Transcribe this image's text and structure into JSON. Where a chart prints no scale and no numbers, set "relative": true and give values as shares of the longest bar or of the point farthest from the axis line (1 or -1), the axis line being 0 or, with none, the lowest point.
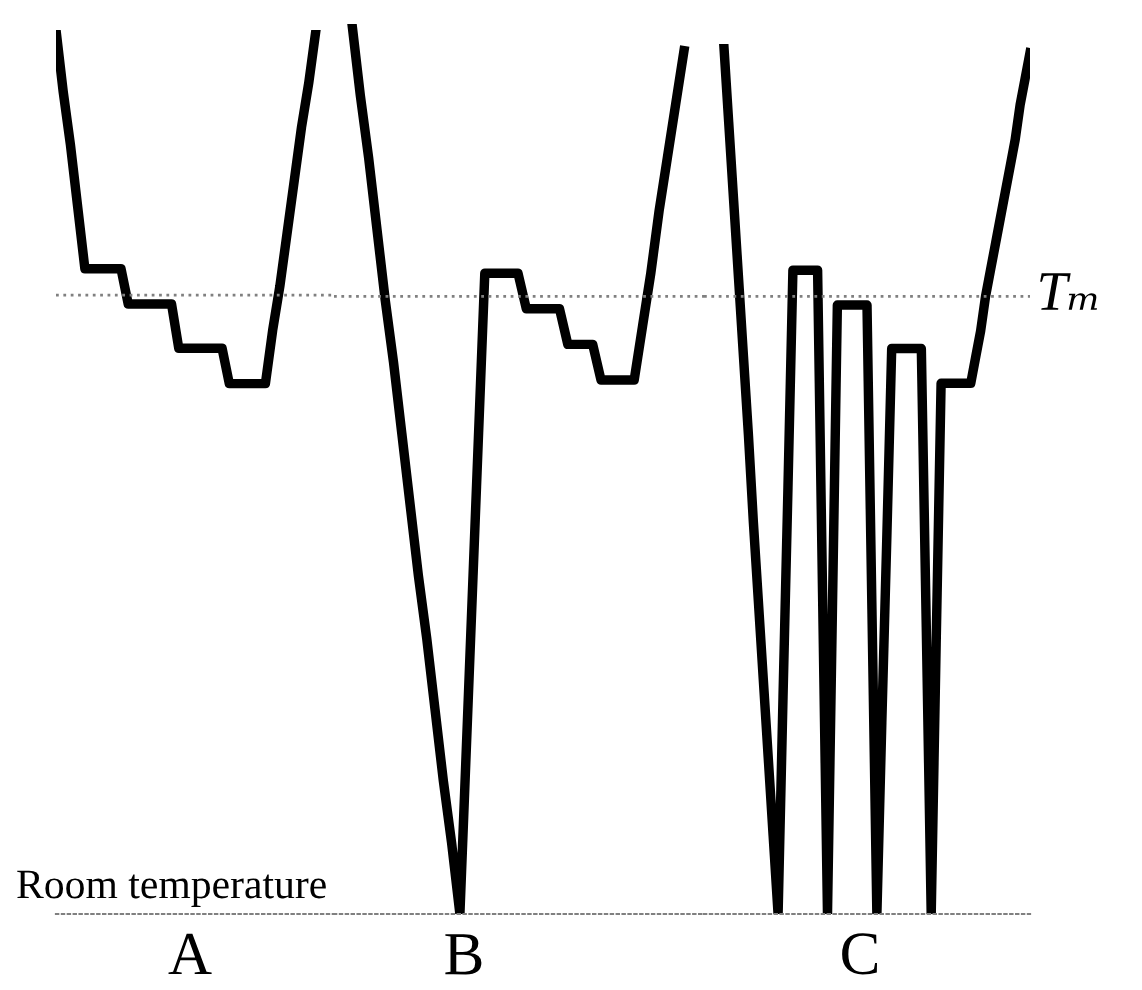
{
  "chart_data": [
    {
      "type": "line",
      "relative": true,
      "xlabel": "A",
      "line_style": "solid",
      "marker": "none",
      "categories": [
        null,
        null,
        null,
        null,
        null,
        null,
        null,
        null,
        null,
        null,
        null,
        null,
        null,
        null,
        null,
        null,
        null,
        null,
        null,
        null,
        null,
        null,
        null,
        null,
        null,
        null,
        null,
        null,
        null,
        null,
        null,
        null,
        null,
        null,
        null,
        null,
        null
      ],
      "series": [
        {
          "color": "#000000",
          "values": [
            1.0,
            0.93,
            0.87,
            0.8,
            0.73,
            0.73,
            0.73,
            0.73,
            0.73,
            0.73,
            0.69,
            0.69,
            0.69,
            0.69,
            0.69,
            0.69,
            0.69,
            0.64,
            0.64,
            0.64,
            0.64,
            0.64,
            0.64,
            0.64,
            0.6,
            0.6,
            0.6,
            0.6,
            0.6,
            0.6,
            0.66,
            0.71,
            0.77,
            0.83,
            0.89,
            0.94,
            1.0
          ]
        }
      ],
      "ref_lines": [
        {
          "axis": "y",
          "value": 0.7,
          "color": "#808080",
          "line_style": "dotted"
        }
      ],
      "annotations": [
        "Room temperature"
      ]
    },
    {
      "type": "line",
      "relative": true,
      "xlabel": "B",
      "line_style": "solid",
      "marker": "none",
      "categories": [
        null,
        null,
        null,
        null,
        null,
        null,
        null,
        null,
        null,
        null,
        null,
        null,
        null,
        null,
        null,
        null,
        null,
        null,
        null,
        null,
        null,
        null,
        null,
        null,
        null,
        null,
        null,
        null,
        null,
        null,
        null,
        null,
        null,
        null,
        null,
        null,
        null,
        null,
        null,
        null,
        null
      ],
      "series": [
        {
          "color": "#000000",
          "values": [
            1.0,
            0.92,
            0.85,
            0.77,
            0.69,
            0.62,
            0.54,
            0.46,
            0.38,
            0.31,
            0.23,
            0.15,
            0.08,
            0.0,
            0.24,
            0.48,
            0.72,
            0.72,
            0.72,
            0.72,
            0.72,
            0.68,
            0.68,
            0.68,
            0.68,
            0.68,
            0.64,
            0.64,
            0.64,
            0.64,
            0.6,
            0.6,
            0.6,
            0.6,
            0.6,
            0.66,
            0.72,
            0.79,
            0.85,
            0.91,
            0.97
          ]
        }
      ],
      "ref_lines": [
        {
          "axis": "y",
          "value": 0.694,
          "color": "#808080",
          "line_style": "dotted"
        }
      ]
    },
    {
      "type": "line",
      "relative": true,
      "xlabel": "C",
      "line_style": "solid",
      "marker": "none",
      "categories": [
        null,
        null,
        null,
        null,
        null,
        null,
        null,
        null,
        null,
        null,
        null,
        null,
        null,
        null,
        null,
        null,
        null,
        null,
        null,
        null,
        null,
        null,
        null,
        null,
        null,
        null,
        null,
        null,
        null,
        null,
        null,
        null,
        null,
        null,
        null,
        null,
        null,
        null,
        null,
        null,
        null,
        null,
        null,
        null,
        null,
        null,
        null,
        null,
        null,
        null,
        null,
        null,
        null,
        null,
        null,
        null,
        null,
        null,
        null,
        null,
        null,
        null,
        null
      ],
      "series": [
        {
          "color": "#000000",
          "values": [
            1.0,
            0.91,
            0.82,
            0.73,
            0.64,
            0.55,
            0.45,
            0.36,
            0.27,
            0.18,
            0.09,
            0.0,
            0.25,
            0.49,
            0.74,
            0.74,
            0.74,
            0.74,
            0.74,
            0.74,
            0.37,
            0.0,
            0.35,
            0.7,
            0.7,
            0.7,
            0.7,
            0.7,
            0.7,
            0.7,
            0.35,
            0.0,
            0.22,
            0.43,
            0.65,
            0.65,
            0.65,
            0.65,
            0.65,
            0.65,
            0.65,
            0.33,
            0.0,
            0.31,
            0.61,
            0.61,
            0.61,
            0.61,
            0.61,
            0.61,
            0.61,
            0.64,
            0.67,
            0.71,
            0.74,
            0.77,
            0.8,
            0.83,
            0.86,
            0.89,
            0.93,
            0.96,
            0.99
          ]
        }
      ],
      "ref_lines": [
        {
          "axis": "y",
          "value": 0.71,
          "label": "Tₘ",
          "color": "#808080",
          "line_style": "dotted"
        }
      ]
    }
  ]
}
